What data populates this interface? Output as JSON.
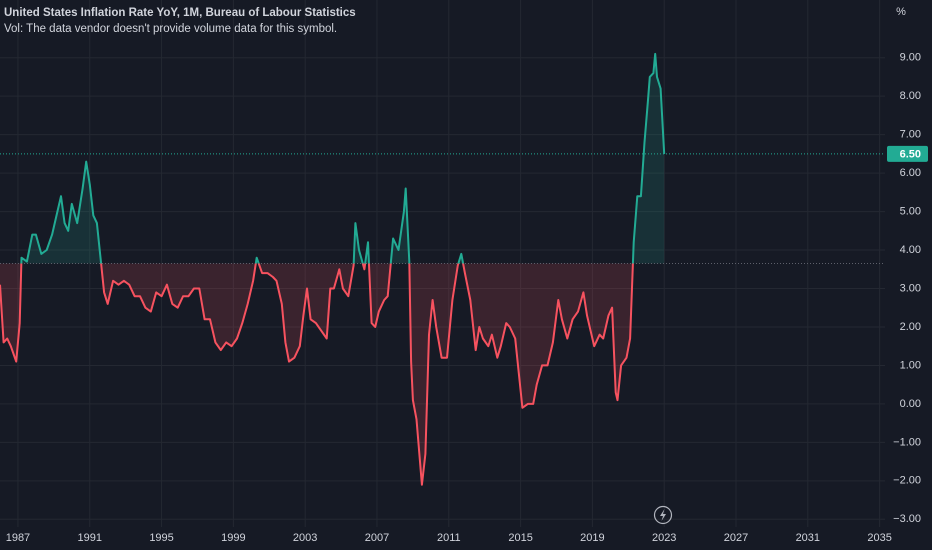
{
  "chart_data": {
    "type": "baseline",
    "title": "United States Inflation Rate YoY, 1M, Bureau of Labour Statistics",
    "subtitle": "Vol: The data vendor doesn't provide volume data for this symbol.",
    "unit_label": "%",
    "x": [
      1986.0,
      1986.2,
      1986.4,
      1986.6,
      1986.9,
      1987.1,
      1987.2,
      1987.5,
      1987.8,
      1988.0,
      1988.3,
      1988.6,
      1988.9,
      1989.2,
      1989.4,
      1989.6,
      1989.8,
      1990.0,
      1990.3,
      1990.6,
      1990.8,
      1991.0,
      1991.2,
      1991.4,
      1991.6,
      1991.8,
      1992.0,
      1992.3,
      1992.6,
      1992.9,
      1993.2,
      1993.5,
      1993.8,
      1994.1,
      1994.4,
      1994.7,
      1995.0,
      1995.3,
      1995.6,
      1995.9,
      1996.2,
      1996.5,
      1996.8,
      1997.1,
      1997.4,
      1997.7,
      1998.0,
      1998.3,
      1998.6,
      1998.9,
      1999.2,
      1999.5,
      1999.8,
      2000.1,
      2000.3,
      2000.6,
      2000.9,
      2001.2,
      2001.4,
      2001.7,
      2001.9,
      2002.1,
      2002.4,
      2002.7,
      2002.9,
      2003.1,
      2003.3,
      2003.6,
      2003.9,
      2004.2,
      2004.4,
      2004.6,
      2004.9,
      2005.1,
      2005.4,
      2005.7,
      2005.8,
      2006.0,
      2006.3,
      2006.5,
      2006.7,
      2006.9,
      2007.1,
      2007.4,
      2007.6,
      2007.9,
      2008.2,
      2008.5,
      2008.6,
      2008.8,
      2008.9,
      2009.0,
      2009.2,
      2009.5,
      2009.7,
      2009.9,
      2010.1,
      2010.3,
      2010.6,
      2010.9,
      2011.2,
      2011.5,
      2011.7,
      2011.9,
      2012.2,
      2012.5,
      2012.7,
      2012.9,
      2013.2,
      2013.4,
      2013.7,
      2013.9,
      2014.2,
      2014.4,
      2014.7,
      2014.9,
      2015.1,
      2015.4,
      2015.7,
      2015.9,
      2016.2,
      2016.5,
      2016.8,
      2017.1,
      2017.3,
      2017.6,
      2017.9,
      2018.2,
      2018.5,
      2018.7,
      2018.9,
      2019.1,
      2019.4,
      2019.6,
      2019.9,
      2020.1,
      2020.3,
      2020.4,
      2020.6,
      2020.9,
      2021.1,
      2021.3,
      2021.5,
      2021.7,
      2021.9,
      2022.1,
      2022.2,
      2022.4,
      2022.5,
      2022.6,
      2022.8,
      2023.0
    ],
    "values": [
      3.1,
      1.6,
      1.7,
      1.5,
      1.1,
      2.1,
      3.8,
      3.7,
      4.4,
      4.4,
      3.9,
      4.0,
      4.4,
      5.0,
      5.4,
      4.7,
      4.5,
      5.2,
      4.7,
      5.6,
      6.3,
      5.7,
      4.9,
      4.7,
      3.8,
      2.9,
      2.6,
      3.2,
      3.1,
      3.2,
      3.1,
      2.8,
      2.8,
      2.5,
      2.4,
      2.9,
      2.8,
      3.1,
      2.6,
      2.5,
      2.8,
      2.8,
      3.0,
      3.0,
      2.2,
      2.2,
      1.6,
      1.4,
      1.6,
      1.5,
      1.7,
      2.1,
      2.6,
      3.2,
      3.8,
      3.4,
      3.4,
      3.3,
      3.2,
      2.6,
      1.6,
      1.1,
      1.2,
      1.5,
      2.3,
      3.0,
      2.2,
      2.1,
      1.9,
      1.7,
      3.0,
      3.0,
      3.5,
      3.0,
      2.8,
      3.6,
      4.7,
      4.0,
      3.5,
      4.2,
      2.1,
      2.0,
      2.4,
      2.7,
      2.8,
      4.3,
      4.0,
      5.0,
      5.6,
      3.7,
      1.1,
      0.1,
      -0.4,
      -2.1,
      -1.3,
      1.8,
      2.7,
      2.0,
      1.2,
      1.2,
      2.7,
      3.6,
      3.9,
      3.4,
      2.7,
      1.4,
      2.0,
      1.7,
      1.5,
      1.8,
      1.2,
      1.5,
      2.1,
      2.0,
      1.7,
      0.8,
      -0.1,
      0.0,
      0.0,
      0.5,
      1.0,
      1.0,
      1.6,
      2.7,
      2.2,
      1.7,
      2.2,
      2.4,
      2.9,
      2.3,
      1.9,
      1.5,
      1.8,
      1.7,
      2.3,
      2.5,
      0.3,
      0.1,
      1.0,
      1.2,
      1.7,
      4.2,
      5.4,
      5.4,
      6.8,
      7.9,
      8.5,
      8.6,
      9.1,
      8.5,
      8.2,
      6.5
    ],
    "baseline": 3.65,
    "up_color": "#22ab94",
    "down_color": "#f7525f",
    "last_price": {
      "value": 6.5,
      "label": "6.50"
    },
    "xlim": [
      1986.0,
      2035.3
    ],
    "ylim": [
      -3.2,
      10.5
    ],
    "xticks": [
      1987,
      1991,
      1995,
      1999,
      2003,
      2007,
      2011,
      2015,
      2019,
      2023,
      2027,
      2031,
      2035
    ],
    "yticks": [
      {
        "value": -3,
        "label": "−3.00"
      },
      {
        "value": -2,
        "label": "−2.00"
      },
      {
        "value": -1,
        "label": "−1.00"
      },
      {
        "value": 0,
        "label": "0.00"
      },
      {
        "value": 1,
        "label": "1.00"
      },
      {
        "value": 2,
        "label": "2.00"
      },
      {
        "value": 3,
        "label": "3.00"
      },
      {
        "value": 4,
        "label": "4.00"
      },
      {
        "value": 5,
        "label": "5.00"
      },
      {
        "value": 6,
        "label": "6.00"
      },
      {
        "value": 7,
        "label": "7.00"
      },
      {
        "value": 8,
        "label": "8.00"
      },
      {
        "value": 9,
        "label": "9.00"
      }
    ],
    "grid": true
  }
}
